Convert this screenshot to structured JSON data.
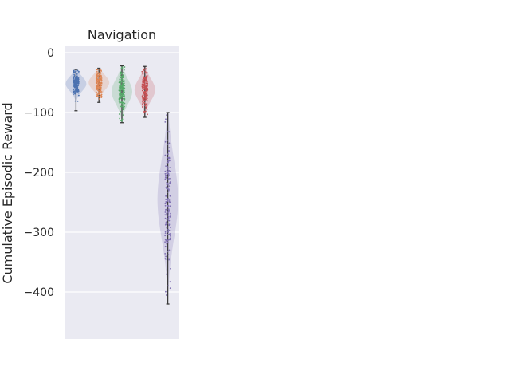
{
  "chart_data": {
    "type": "violin-strip",
    "title": "Navigation",
    "ylabel": "Cumulative Episodic Reward",
    "ylim": [
      -480,
      10
    ],
    "yticks": [
      0,
      -100,
      -200,
      -300,
      -400
    ],
    "grid": true,
    "series": [
      {
        "color": "#4c72b0",
        "min": -97,
        "max": -28,
        "q1": -62,
        "median": -50,
        "q3": -40,
        "mean": -52,
        "sd": 12,
        "n": 170
      },
      {
        "color": "#dd8452",
        "min": -83,
        "max": -26,
        "q1": -60,
        "median": -50,
        "q3": -40,
        "mean": -50,
        "sd": 12,
        "n": 170
      },
      {
        "color": "#55a868",
        "min": -117,
        "max": -22,
        "q1": -82,
        "median": -62,
        "q3": -46,
        "mean": -65,
        "sd": 20,
        "n": 170
      },
      {
        "color": "#c44e52",
        "min": -108,
        "max": -23,
        "q1": -80,
        "median": -60,
        "q3": -45,
        "mean": -62,
        "sd": 18,
        "n": 170
      },
      {
        "color": "#8172b3",
        "min": -420,
        "max": -100,
        "q1": -290,
        "median": -235,
        "q3": -190,
        "mean": -245,
        "sd": 65,
        "n": 170
      }
    ]
  }
}
